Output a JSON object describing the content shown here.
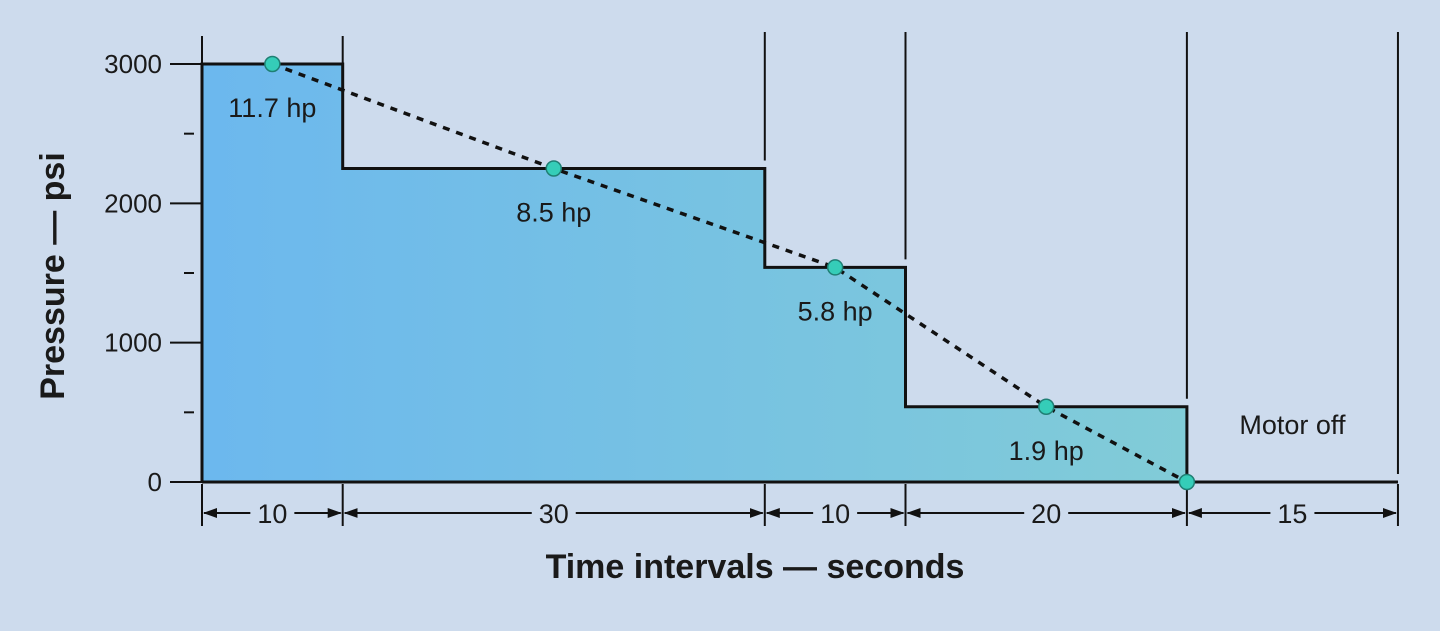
{
  "chart_data": {
    "type": "area",
    "title": "",
    "xlabel": "Time intervals — seconds",
    "ylabel": "Pressure — psi",
    "ylim": [
      0,
      3000
    ],
    "yticks": [
      "0",
      "1000",
      "2000",
      "3000"
    ],
    "x_unit": "seconds",
    "steps": [
      {
        "start": 0,
        "end": 10,
        "duration": 10,
        "duration_label": "10",
        "pressure": 3000,
        "power_label": "11.7 hp"
      },
      {
        "start": 10,
        "end": 40,
        "duration": 30,
        "duration_label": "30",
        "pressure": 2250,
        "power_label": "8.5 hp"
      },
      {
        "start": 40,
        "end": 50,
        "duration": 10,
        "duration_label": "10",
        "pressure": 1540,
        "power_label": "5.8 hp"
      },
      {
        "start": 50,
        "end": 70,
        "duration": 20,
        "duration_label": "20",
        "pressure": 540,
        "power_label": "1.9 hp"
      },
      {
        "start": 70,
        "end": 85,
        "duration": 15,
        "duration_label": "15",
        "pressure": 0,
        "power_label": ""
      }
    ],
    "average_line_points": [
      {
        "x": 5,
        "y": 3000
      },
      {
        "x": 25,
        "y": 2250
      },
      {
        "x": 45,
        "y": 1540
      },
      {
        "x": 60,
        "y": 540
      },
      {
        "x": 70,
        "y": 0
      }
    ],
    "annotations": [
      "Motor off"
    ],
    "colors": {
      "background": "#cddbed",
      "fill_start": "#6cb8ee",
      "fill_end": "#86d0d2",
      "marker": "#35cdb8",
      "line": "#111111"
    }
  }
}
